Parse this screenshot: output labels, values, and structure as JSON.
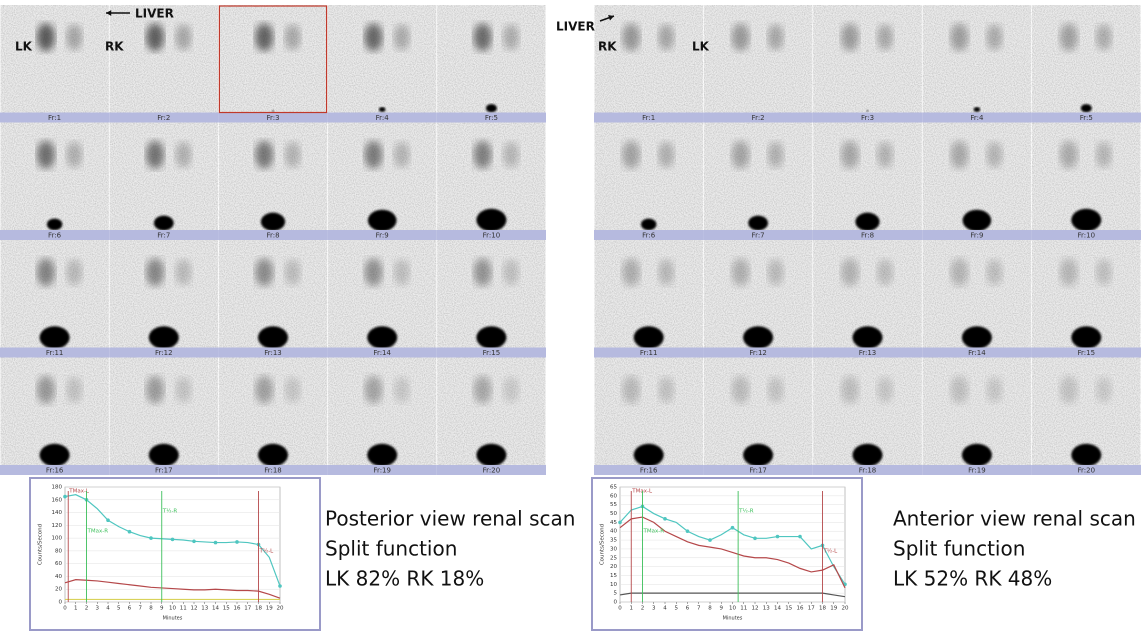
{
  "panels": [
    {
      "annotations": [
        "LIVER",
        "LK",
        "RK"
      ],
      "frames": [
        "Fr:1",
        "Fr:2",
        "Fr:3",
        "Fr:4",
        "Fr:5",
        "Fr:6",
        "Fr:7",
        "Fr:8",
        "Fr:9",
        "Fr:10",
        "Fr:11",
        "Fr:12",
        "Fr:13",
        "Fr:14",
        "Fr:15",
        "Fr:16",
        "Fr:17",
        "Fr:18",
        "Fr:19",
        "Fr:20"
      ],
      "graph": {
        "type": "line",
        "y_label": "Counts/Second",
        "x_label": "Minutes",
        "xlim": [
          0,
          20
        ],
        "ylim": [
          0,
          180
        ],
        "xticks": [
          0,
          1,
          2,
          3,
          4,
          5,
          6,
          7,
          8,
          9,
          10,
          11,
          12,
          13,
          14,
          15,
          16,
          17,
          18,
          19,
          20
        ],
        "yticks": [
          0,
          20,
          40,
          60,
          80,
          100,
          120,
          140,
          160,
          180
        ],
        "x": [
          0,
          1,
          2,
          3,
          4,
          5,
          6,
          7,
          8,
          9,
          10,
          11,
          12,
          13,
          14,
          15,
          16,
          17,
          18,
          19,
          20
        ],
        "series": [
          {
            "color": "#4fc6c0",
            "values": [
              165,
              168,
              160,
              146,
              128,
              118,
              110,
              104,
              100,
              99,
              98,
              97,
              95,
              94,
              93,
              93,
              94,
              93,
              90,
              70,
              25
            ]
          },
          {
            "color": "#b5484a",
            "values": [
              30,
              35,
              34,
              33,
              31,
              29,
              27,
              25,
              23,
              22,
              21,
              20,
              19,
              19,
              20,
              19,
              18,
              18,
              17,
              12,
              6
            ]
          },
          {
            "color": "#d9d25a",
            "values": [
              4,
              4,
              4,
              4,
              4,
              4,
              4,
              4,
              4,
              4,
              4,
              4,
              4,
              4,
              4,
              4,
              4,
              4,
              4,
              4,
              4
            ]
          }
        ],
        "markers": [
          {
            "label": "TMax-L",
            "x": 0.3,
            "color": "#b5484a"
          },
          {
            "label": "TMax-R",
            "x": 2,
            "color": "#3cbf5a"
          },
          {
            "label": "T½-R",
            "x": 9,
            "color": "#3cbf5a"
          },
          {
            "label": "T½-L",
            "x": 18,
            "color": "#b5484a"
          }
        ]
      },
      "caption": [
        "Posterior view renal scan",
        "Split function",
        "LK 82% RK 18%"
      ]
    },
    {
      "annotations": [
        "LIVER",
        "RK",
        "LK"
      ],
      "frames": [
        "Fr:1",
        "Fr:2",
        "Fr:3",
        "Fr:4",
        "Fr:5",
        "Fr:6",
        "Fr:7",
        "Fr:8",
        "Fr:9",
        "Fr:10",
        "Fr:11",
        "Fr:12",
        "Fr:13",
        "Fr:14",
        "Fr:15",
        "Fr:16",
        "Fr:17",
        "Fr:18",
        "Fr:19",
        "Fr:20"
      ],
      "graph": {
        "type": "line",
        "y_label": "Counts/Second",
        "x_label": "Minutes",
        "xlim": [
          0,
          20
        ],
        "ylim": [
          0,
          65
        ],
        "xticks": [
          0,
          1,
          2,
          3,
          4,
          5,
          6,
          7,
          8,
          9,
          10,
          11,
          12,
          13,
          14,
          15,
          16,
          17,
          18,
          19,
          20
        ],
        "yticks": [
          0,
          5,
          10,
          15,
          20,
          25,
          30,
          35,
          40,
          45,
          50,
          55,
          60,
          65
        ],
        "x": [
          0,
          1,
          2,
          3,
          4,
          5,
          6,
          7,
          8,
          9,
          10,
          11,
          12,
          13,
          14,
          15,
          16,
          17,
          18,
          19,
          20
        ],
        "series": [
          {
            "color": "#4fc6c0",
            "values": [
              45,
              52,
              54,
              50,
              47,
              45,
              40,
              37,
              35,
              38,
              42,
              38,
              36,
              36,
              37,
              37,
              37,
              30,
              32,
              20,
              10
            ]
          },
          {
            "color": "#b5484a",
            "values": [
              42,
              47,
              48,
              45,
              40,
              37,
              34,
              32,
              31,
              30,
              28,
              26,
              25,
              25,
              24,
              22,
              19,
              17,
              18,
              21,
              8
            ]
          },
          {
            "color": "#555555",
            "values": [
              4,
              5,
              5,
              5,
              5,
              5,
              5,
              5,
              5,
              5,
              5,
              5,
              5,
              5,
              5,
              5,
              5,
              5,
              5,
              4,
              3
            ]
          }
        ],
        "markers": [
          {
            "label": "TMax-L",
            "x": 1,
            "color": "#b5484a"
          },
          {
            "label": "TMax-R",
            "x": 2,
            "color": "#3cbf5a"
          },
          {
            "label": "T½-R",
            "x": 10.5,
            "color": "#3cbf5a"
          },
          {
            "label": "T½-L",
            "x": 18,
            "color": "#b5484a"
          }
        ]
      },
      "caption": [
        "Anterior view renal scan",
        "Split function",
        "LK 52% RK 48%"
      ]
    }
  ]
}
